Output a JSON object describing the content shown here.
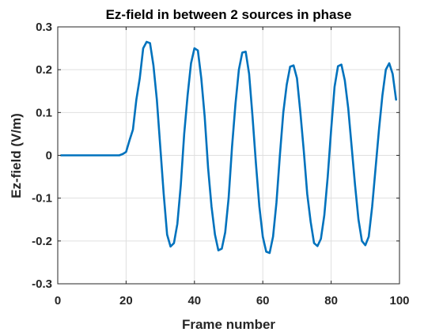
{
  "chart_data": {
    "type": "line",
    "title": "Ez-field in between 2 sources in phase",
    "xlabel": "Frame number",
    "ylabel": "Ez-field (V/m)",
    "xlim": [
      0,
      100
    ],
    "ylim": [
      -0.3,
      0.3
    ],
    "xticks": [
      0,
      20,
      40,
      60,
      80,
      100
    ],
    "xtick_labels": [
      "0",
      "20",
      "40",
      "60",
      "80",
      "100"
    ],
    "yticks": [
      -0.3,
      -0.2,
      -0.1,
      0,
      0.1,
      0.2,
      0.3
    ],
    "ytick_labels": [
      "-0.3",
      "-0.2",
      "-0.1",
      "0",
      "0.1",
      "0.2",
      "0.3"
    ],
    "grid": true,
    "series": [
      {
        "color": "#0072bd",
        "x": [
          1,
          2,
          3,
          4,
          5,
          6,
          7,
          8,
          9,
          10,
          11,
          12,
          13,
          14,
          15,
          16,
          17,
          18,
          19,
          20,
          21,
          22,
          23,
          24,
          25,
          26,
          27,
          28,
          29,
          30,
          31,
          32,
          33,
          34,
          35,
          36,
          37,
          38,
          39,
          40,
          41,
          42,
          43,
          44,
          45,
          46,
          47,
          48,
          49,
          50,
          51,
          52,
          53,
          54,
          55,
          56,
          57,
          58,
          59,
          60,
          61,
          62,
          63,
          64,
          65,
          66,
          67,
          68,
          69,
          70,
          71,
          72,
          73,
          74,
          75,
          76,
          77,
          78,
          79,
          80,
          81,
          82,
          83,
          84,
          85,
          86,
          87,
          88,
          89,
          90,
          91,
          92,
          93,
          94,
          95,
          96,
          97,
          98,
          99
        ],
        "y": [
          0,
          0,
          0,
          0,
          0,
          0,
          0,
          0,
          0,
          0,
          0,
          0,
          0,
          0,
          0,
          0,
          0,
          0,
          0.003,
          0.008,
          0.035,
          0.06,
          0.13,
          0.18,
          0.25,
          0.265,
          0.262,
          0.21,
          0.13,
          0.02,
          -0.09,
          -0.185,
          -0.213,
          -0.205,
          -0.16,
          -0.07,
          0.05,
          0.14,
          0.215,
          0.25,
          0.245,
          0.18,
          0.09,
          -0.03,
          -0.12,
          -0.185,
          -0.222,
          -0.218,
          -0.18,
          -0.1,
          0.02,
          0.12,
          0.2,
          0.24,
          0.242,
          0.19,
          0.09,
          -0.02,
          -0.12,
          -0.19,
          -0.225,
          -0.228,
          -0.19,
          -0.11,
          0.0,
          0.1,
          0.165,
          0.207,
          0.21,
          0.18,
          0.1,
          0.01,
          -0.09,
          -0.155,
          -0.205,
          -0.212,
          -0.195,
          -0.14,
          -0.05,
          0.06,
          0.16,
          0.208,
          0.212,
          0.175,
          0.11,
          0.02,
          -0.07,
          -0.15,
          -0.2,
          -0.21,
          -0.19,
          -0.12,
          -0.03,
          0.06,
          0.14,
          0.2,
          0.215,
          0.19,
          0.13
        ]
      }
    ]
  }
}
